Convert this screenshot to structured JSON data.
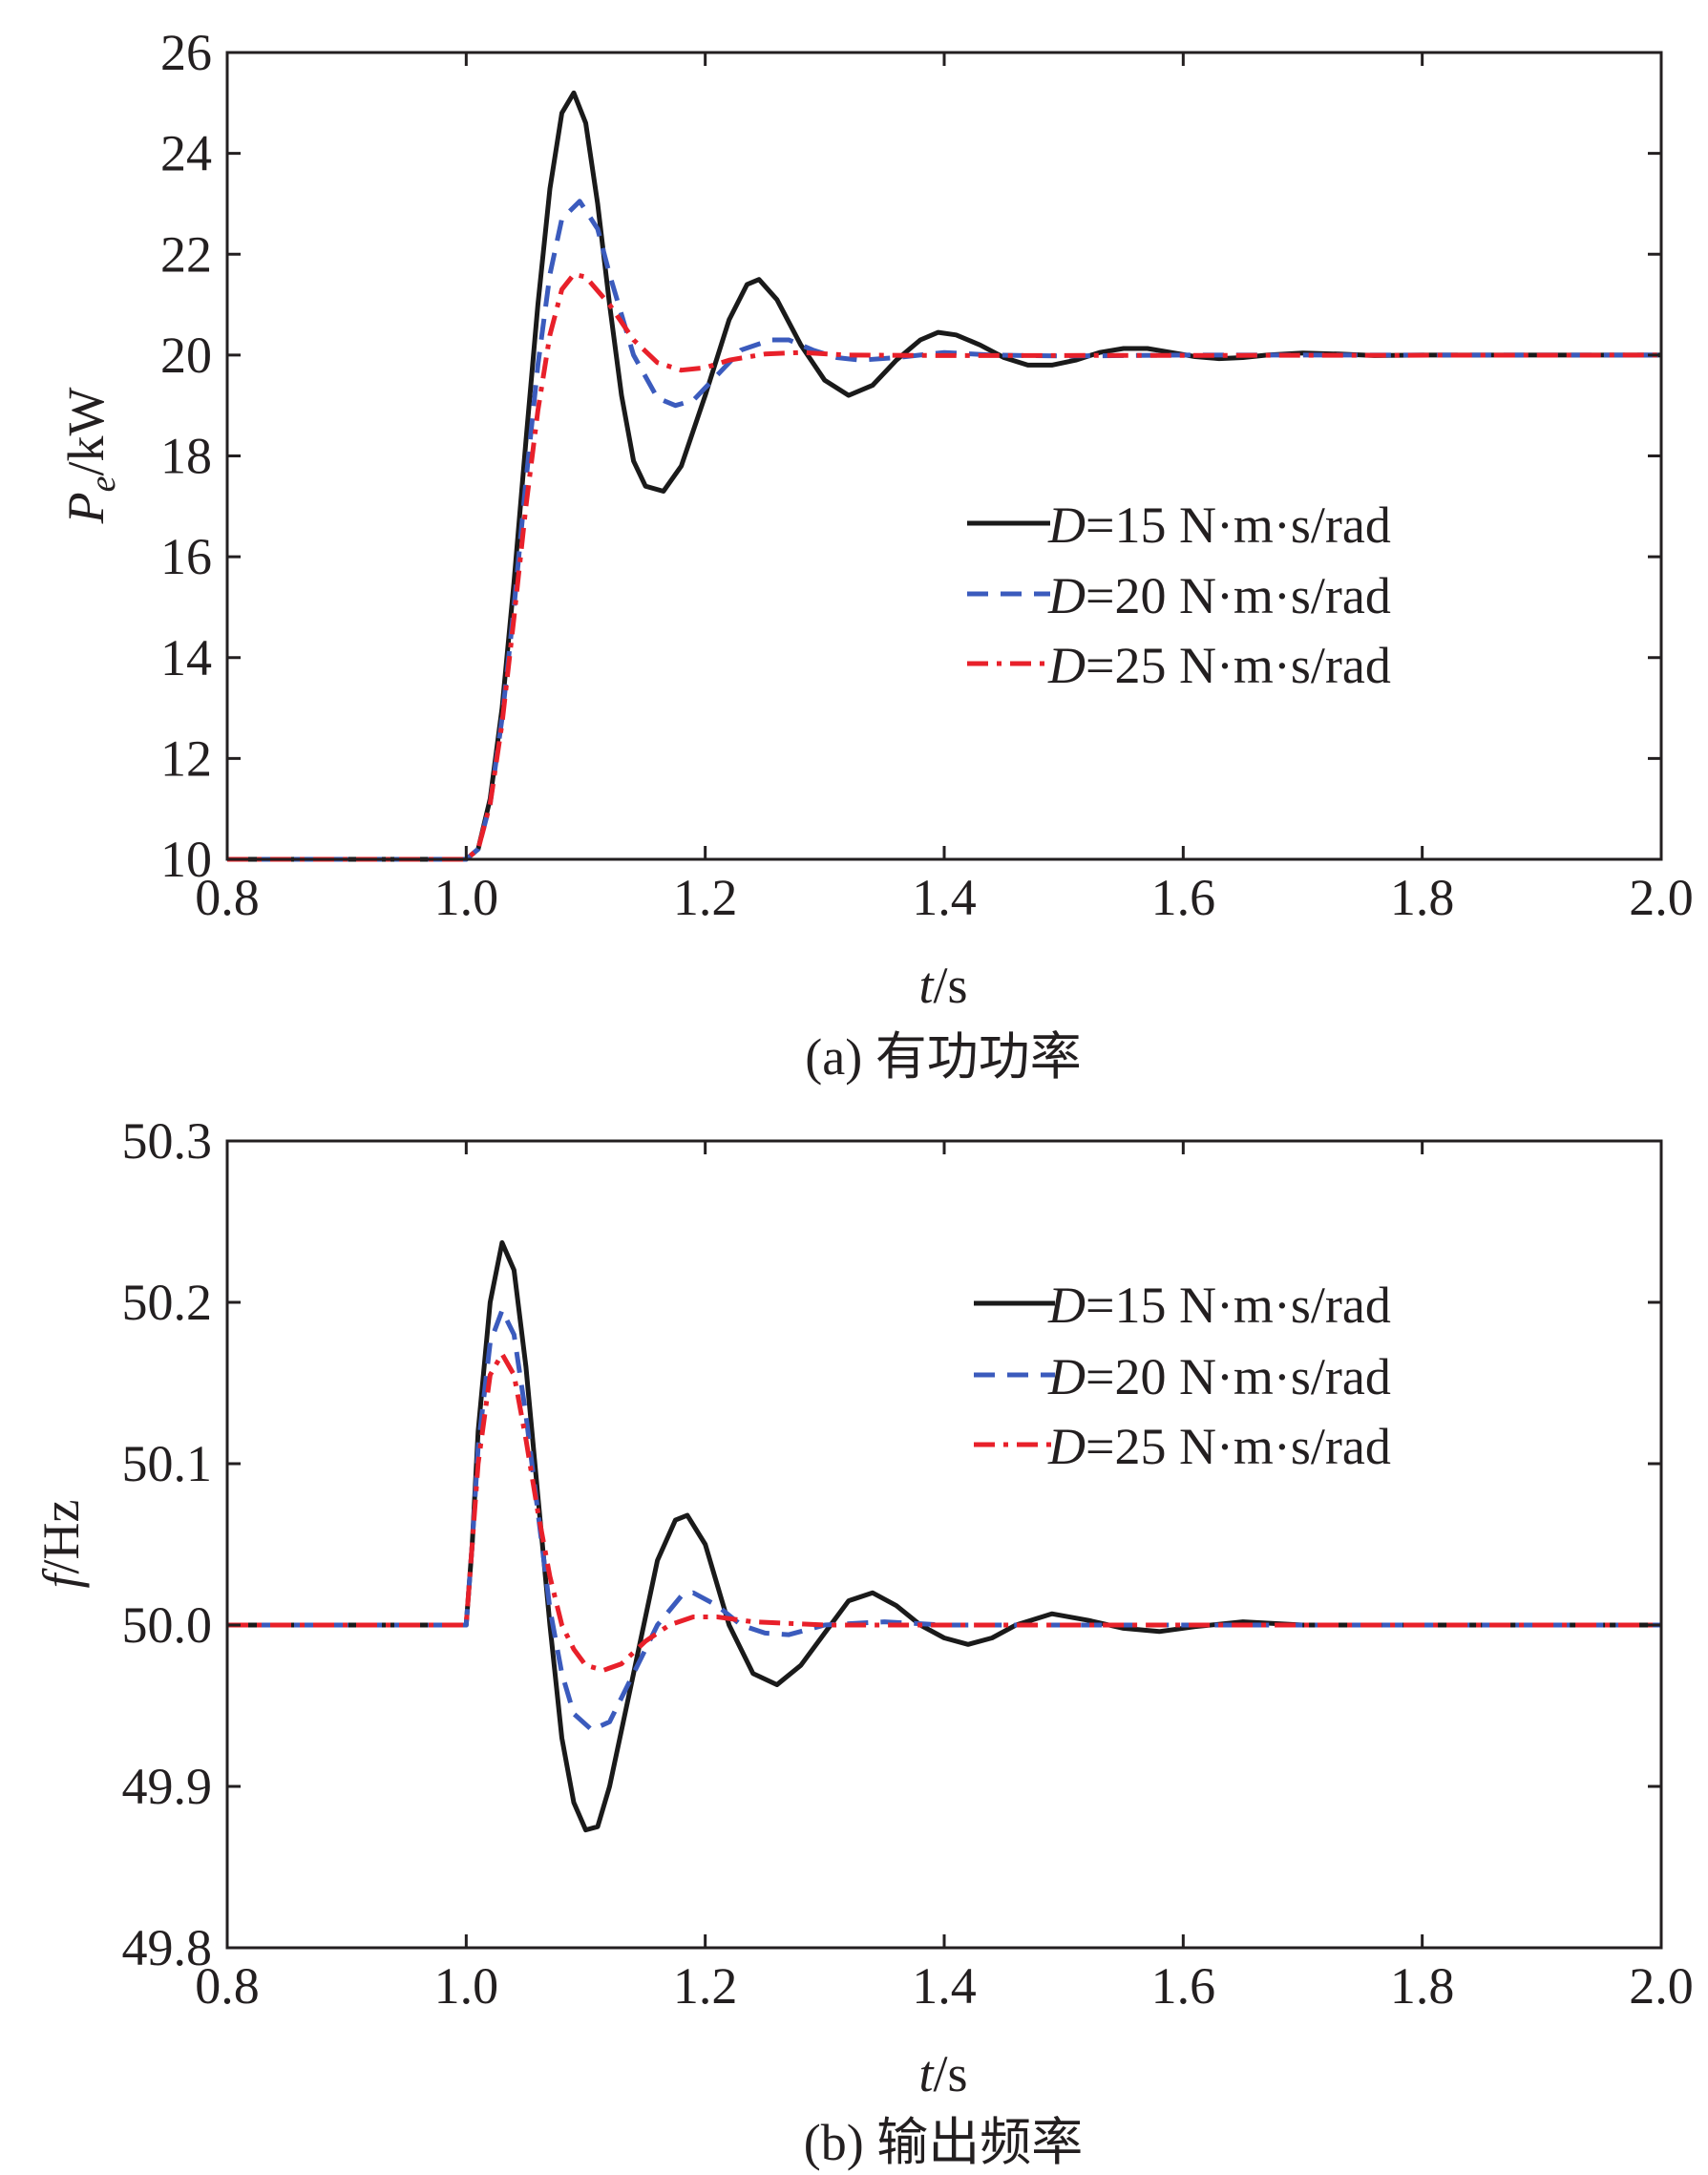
{
  "chart_data": [
    {
      "id": "a",
      "type": "line",
      "caption": "(a) 有功功率",
      "xlabel_italic": "t",
      "xlabel_unit": "/s",
      "ylabel_main": "P",
      "ylabel_sub": "e",
      "ylabel_unit": "/kW",
      "xlim": [
        0.8,
        2.0
      ],
      "ylim": [
        10,
        26
      ],
      "xticks": [
        0.8,
        1.0,
        1.2,
        1.4,
        1.6,
        1.8,
        2.0
      ],
      "xtick_labels": [
        "0.8",
        "1.0",
        "1.2",
        "1.4",
        "1.6",
        "1.8",
        "2.0"
      ],
      "yticks": [
        10,
        12,
        14,
        16,
        18,
        20,
        22,
        24,
        26
      ],
      "ytick_labels": [
        "10",
        "12",
        "14",
        "16",
        "18",
        "20",
        "22",
        "24",
        "26"
      ],
      "grid": false,
      "legend_position": "center-right",
      "series": [
        {
          "name_italic": "D",
          "name_rest": "=15 N·m·s/rad",
          "color": "#1a1a1a",
          "dash": "solid",
          "points": [
            [
              0.8,
              10
            ],
            [
              1.0,
              10
            ],
            [
              1.01,
              10.2
            ],
            [
              1.02,
              11.2
            ],
            [
              1.03,
              13.0
            ],
            [
              1.04,
              15.5
            ],
            [
              1.05,
              18.3
            ],
            [
              1.06,
              21.0
            ],
            [
              1.07,
              23.3
            ],
            [
              1.08,
              24.8
            ],
            [
              1.09,
              25.2
            ],
            [
              1.1,
              24.6
            ],
            [
              1.11,
              23.0
            ],
            [
              1.12,
              21.0
            ],
            [
              1.13,
              19.2
            ],
            [
              1.14,
              17.9
            ],
            [
              1.15,
              17.4
            ],
            [
              1.165,
              17.3
            ],
            [
              1.18,
              17.8
            ],
            [
              1.2,
              19.2
            ],
            [
              1.22,
              20.7
            ],
            [
              1.235,
              21.4
            ],
            [
              1.245,
              21.5
            ],
            [
              1.26,
              21.1
            ],
            [
              1.28,
              20.2
            ],
            [
              1.3,
              19.5
            ],
            [
              1.32,
              19.2
            ],
            [
              1.34,
              19.4
            ],
            [
              1.36,
              19.9
            ],
            [
              1.38,
              20.3
            ],
            [
              1.395,
              20.45
            ],
            [
              1.41,
              20.4
            ],
            [
              1.43,
              20.2
            ],
            [
              1.45,
              19.95
            ],
            [
              1.47,
              19.8
            ],
            [
              1.49,
              19.8
            ],
            [
              1.51,
              19.9
            ],
            [
              1.53,
              20.05
            ],
            [
              1.55,
              20.13
            ],
            [
              1.57,
              20.13
            ],
            [
              1.59,
              20.05
            ],
            [
              1.61,
              19.97
            ],
            [
              1.63,
              19.93
            ],
            [
              1.65,
              19.95
            ],
            [
              1.67,
              20.0
            ],
            [
              1.7,
              20.04
            ],
            [
              1.73,
              20.02
            ],
            [
              1.76,
              19.99
            ],
            [
              1.8,
              20.0
            ],
            [
              2.0,
              20.0
            ]
          ]
        },
        {
          "name_italic": "D",
          "name_rest": "=20 N·m·s/rad",
          "color": "#3b5bbd",
          "dash": "dash",
          "points": [
            [
              0.8,
              10
            ],
            [
              1.0,
              10
            ],
            [
              1.01,
              10.2
            ],
            [
              1.02,
              11.1
            ],
            [
              1.03,
              12.8
            ],
            [
              1.04,
              15.0
            ],
            [
              1.05,
              17.5
            ],
            [
              1.06,
              19.8
            ],
            [
              1.07,
              21.6
            ],
            [
              1.08,
              22.7
            ],
            [
              1.095,
              23.05
            ],
            [
              1.11,
              22.5
            ],
            [
              1.12,
              21.6
            ],
            [
              1.14,
              20.0
            ],
            [
              1.16,
              19.15
            ],
            [
              1.175,
              19.0
            ],
            [
              1.19,
              19.1
            ],
            [
              1.21,
              19.6
            ],
            [
              1.23,
              20.1
            ],
            [
              1.255,
              20.3
            ],
            [
              1.27,
              20.3
            ],
            [
              1.29,
              20.1
            ],
            [
              1.31,
              19.95
            ],
            [
              1.33,
              19.9
            ],
            [
              1.36,
              19.95
            ],
            [
              1.4,
              20.05
            ],
            [
              1.44,
              20.0
            ],
            [
              1.5,
              19.98
            ],
            [
              1.6,
              20.0
            ],
            [
              2.0,
              20.0
            ]
          ]
        },
        {
          "name_italic": "D",
          "name_rest": "=25 N·m·s/rad",
          "color": "#e8202a",
          "dash": "dashdot",
          "points": [
            [
              0.8,
              10
            ],
            [
              1.0,
              10
            ],
            [
              1.01,
              10.2
            ],
            [
              1.02,
              11.1
            ],
            [
              1.03,
              12.7
            ],
            [
              1.04,
              14.8
            ],
            [
              1.05,
              17.0
            ],
            [
              1.06,
              18.9
            ],
            [
              1.07,
              20.4
            ],
            [
              1.08,
              21.3
            ],
            [
              1.09,
              21.6
            ],
            [
              1.1,
              21.55
            ],
            [
              1.12,
              21.0
            ],
            [
              1.14,
              20.3
            ],
            [
              1.16,
              19.85
            ],
            [
              1.18,
              19.7
            ],
            [
              1.2,
              19.75
            ],
            [
              1.22,
              19.9
            ],
            [
              1.25,
              20.02
            ],
            [
              1.28,
              20.05
            ],
            [
              1.32,
              20.0
            ],
            [
              1.4,
              19.99
            ],
            [
              2.0,
              20.0
            ]
          ]
        }
      ]
    },
    {
      "id": "b",
      "type": "line",
      "caption": "(b) 输出频率",
      "xlabel_italic": "t",
      "xlabel_unit": "/s",
      "ylabel_main": "f",
      "ylabel_sub": "",
      "ylabel_unit": "/Hz",
      "xlim": [
        0.8,
        2.0
      ],
      "ylim": [
        49.8,
        50.3
      ],
      "xticks": [
        0.8,
        1.0,
        1.2,
        1.4,
        1.6,
        1.8,
        2.0
      ],
      "xtick_labels": [
        "0.8",
        "1.0",
        "1.2",
        "1.4",
        "1.6",
        "1.8",
        "2.0"
      ],
      "yticks": [
        49.8,
        49.9,
        50.0,
        50.1,
        50.2,
        50.3
      ],
      "ytick_labels": [
        "49.8",
        "49.9",
        "50.0",
        "50.1",
        "50.2",
        "50.3"
      ],
      "grid": false,
      "legend_position": "upper-right",
      "series": [
        {
          "name_italic": "D",
          "name_rest": "=15 N·m·s/rad",
          "color": "#1a1a1a",
          "dash": "solid",
          "points": [
            [
              0.8,
              50.0
            ],
            [
              1.0,
              50.0
            ],
            [
              1.005,
              50.05
            ],
            [
              1.01,
              50.12
            ],
            [
              1.02,
              50.2
            ],
            [
              1.03,
              50.237
            ],
            [
              1.04,
              50.22
            ],
            [
              1.05,
              50.16
            ],
            [
              1.06,
              50.08
            ],
            [
              1.07,
              50.0
            ],
            [
              1.08,
              49.93
            ],
            [
              1.09,
              49.89
            ],
            [
              1.1,
              49.873
            ],
            [
              1.11,
              49.875
            ],
            [
              1.12,
              49.9
            ],
            [
              1.14,
              49.97
            ],
            [
              1.16,
              50.04
            ],
            [
              1.175,
              50.065
            ],
            [
              1.185,
              50.068
            ],
            [
              1.2,
              50.05
            ],
            [
              1.22,
              50.0
            ],
            [
              1.24,
              49.97
            ],
            [
              1.26,
              49.963
            ],
            [
              1.28,
              49.975
            ],
            [
              1.3,
              49.995
            ],
            [
              1.32,
              50.015
            ],
            [
              1.34,
              50.02
            ],
            [
              1.36,
              50.012
            ],
            [
              1.38,
              50.0
            ],
            [
              1.4,
              49.992
            ],
            [
              1.42,
              49.988
            ],
            [
              1.44,
              49.992
            ],
            [
              1.46,
              50.0
            ],
            [
              1.49,
              50.007
            ],
            [
              1.52,
              50.003
            ],
            [
              1.55,
              49.998
            ],
            [
              1.58,
              49.996
            ],
            [
              1.61,
              49.999
            ],
            [
              1.65,
              50.002
            ],
            [
              1.7,
              50.0
            ],
            [
              2.0,
              50.0
            ]
          ]
        },
        {
          "name_italic": "D",
          "name_rest": "=20 N·m·s/rad",
          "color": "#3b5bbd",
          "dash": "dash",
          "points": [
            [
              0.8,
              50.0
            ],
            [
              1.0,
              50.0
            ],
            [
              1.005,
              50.05
            ],
            [
              1.01,
              50.11
            ],
            [
              1.02,
              50.175
            ],
            [
              1.03,
              50.195
            ],
            [
              1.04,
              50.18
            ],
            [
              1.05,
              50.13
            ],
            [
              1.06,
              50.07
            ],
            [
              1.07,
              50.01
            ],
            [
              1.08,
              49.97
            ],
            [
              1.09,
              49.945
            ],
            [
              1.105,
              49.935
            ],
            [
              1.12,
              49.94
            ],
            [
              1.14,
              49.97
            ],
            [
              1.16,
              50.0
            ],
            [
              1.18,
              50.018
            ],
            [
              1.19,
              50.02
            ],
            [
              1.21,
              50.012
            ],
            [
              1.23,
              50.0
            ],
            [
              1.25,
              49.995
            ],
            [
              1.27,
              49.994
            ],
            [
              1.3,
              50.0
            ],
            [
              1.35,
              50.002
            ],
            [
              1.4,
              50.0
            ],
            [
              2.0,
              50.0
            ]
          ]
        },
        {
          "name_italic": "D",
          "name_rest": "=25 N·m·s/rad",
          "color": "#e8202a",
          "dash": "dashdot",
          "points": [
            [
              0.8,
              50.0
            ],
            [
              1.0,
              50.0
            ],
            [
              1.005,
              50.05
            ],
            [
              1.01,
              50.1
            ],
            [
              1.02,
              50.155
            ],
            [
              1.03,
              50.168
            ],
            [
              1.04,
              50.155
            ],
            [
              1.05,
              50.115
            ],
            [
              1.06,
              50.07
            ],
            [
              1.07,
              50.03
            ],
            [
              1.08,
              50.0
            ],
            [
              1.09,
              49.985
            ],
            [
              1.1,
              49.975
            ],
            [
              1.115,
              49.972
            ],
            [
              1.13,
              49.976
            ],
            [
              1.15,
              49.99
            ],
            [
              1.17,
              50.0
            ],
            [
              1.19,
              50.005
            ],
            [
              1.21,
              50.005
            ],
            [
              1.24,
              50.002
            ],
            [
              1.3,
              50.0
            ],
            [
              2.0,
              50.0
            ]
          ]
        }
      ]
    }
  ]
}
